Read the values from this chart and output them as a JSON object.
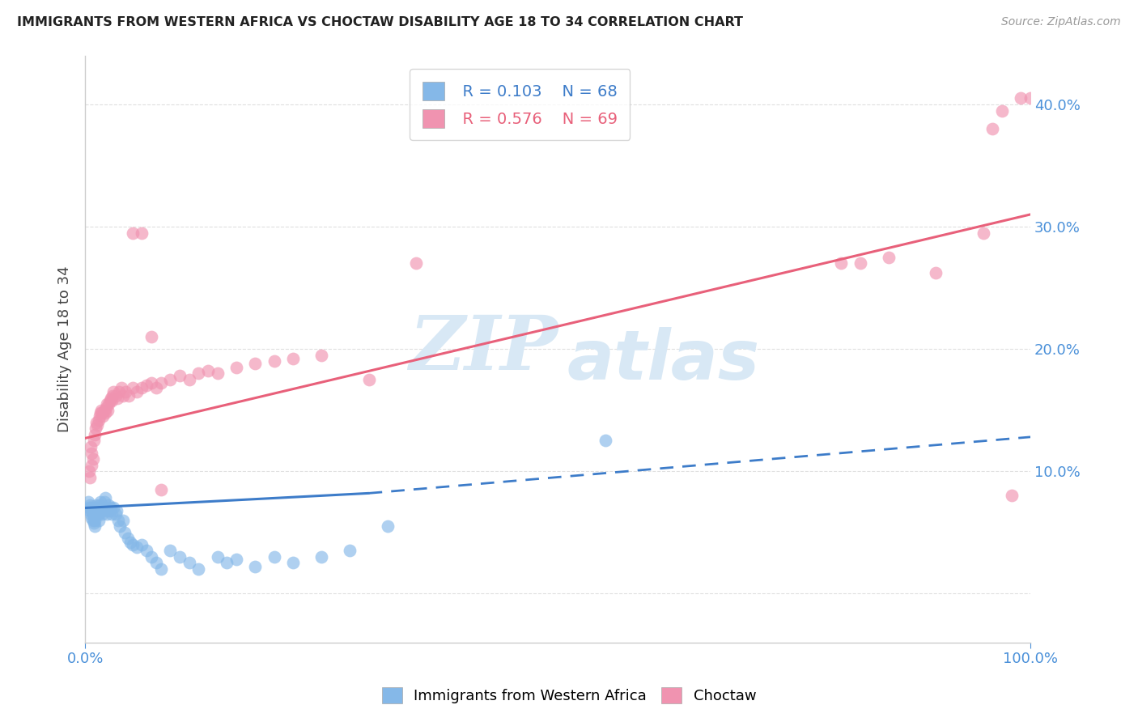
{
  "title": "IMMIGRANTS FROM WESTERN AFRICA VS CHOCTAW DISABILITY AGE 18 TO 34 CORRELATION CHART",
  "source": "Source: ZipAtlas.com",
  "ylabel": "Disability Age 18 to 34",
  "xlim": [
    0.0,
    1.0
  ],
  "ylim": [
    -0.04,
    0.44
  ],
  "yticks": [
    0.0,
    0.1,
    0.2,
    0.3,
    0.4
  ],
  "ytick_labels": [
    "",
    "10.0%",
    "20.0%",
    "30.0%",
    "40.0%"
  ],
  "legend_R1": "R = 0.103",
  "legend_N1": "N = 68",
  "legend_R2": "R = 0.576",
  "legend_N2": "N = 69",
  "color_blue": "#85b8e8",
  "color_pink": "#f093b0",
  "color_line_blue": "#3d7cc9",
  "color_line_pink": "#e8607a",
  "color_title": "#222222",
  "color_source": "#999999",
  "color_ylabel": "#444444",
  "color_ytick": "#4a90d9",
  "color_xtick": "#4a90d9",
  "watermark_zip": "ZIP",
  "watermark_atlas": "atlas",
  "watermark_color": "#d8e8f5",
  "background_color": "#ffffff",
  "grid_color": "#e0e0e0",
  "blue_x": [
    0.003,
    0.004,
    0.005,
    0.005,
    0.006,
    0.006,
    0.007,
    0.007,
    0.008,
    0.008,
    0.009,
    0.009,
    0.01,
    0.01,
    0.01,
    0.011,
    0.011,
    0.012,
    0.012,
    0.013,
    0.013,
    0.014,
    0.014,
    0.015,
    0.015,
    0.016,
    0.017,
    0.018,
    0.019,
    0.02,
    0.021,
    0.022,
    0.023,
    0.024,
    0.025,
    0.026,
    0.027,
    0.028,
    0.03,
    0.032,
    0.033,
    0.035,
    0.037,
    0.04,
    0.042,
    0.045,
    0.048,
    0.05,
    0.055,
    0.06,
    0.065,
    0.07,
    0.075,
    0.08,
    0.09,
    0.1,
    0.11,
    0.12,
    0.14,
    0.15,
    0.16,
    0.18,
    0.2,
    0.22,
    0.25,
    0.28,
    0.32,
    0.55
  ],
  "blue_y": [
    0.075,
    0.07,
    0.068,
    0.072,
    0.065,
    0.07,
    0.062,
    0.068,
    0.06,
    0.065,
    0.058,
    0.063,
    0.055,
    0.06,
    0.067,
    0.07,
    0.065,
    0.068,
    0.072,
    0.065,
    0.07,
    0.06,
    0.065,
    0.068,
    0.072,
    0.075,
    0.07,
    0.065,
    0.068,
    0.075,
    0.078,
    0.07,
    0.065,
    0.068,
    0.072,
    0.068,
    0.07,
    0.065,
    0.07,
    0.065,
    0.068,
    0.06,
    0.055,
    0.06,
    0.05,
    0.045,
    0.042,
    0.04,
    0.038,
    0.04,
    0.035,
    0.03,
    0.025,
    0.02,
    0.035,
    0.03,
    0.025,
    0.02,
    0.03,
    0.025,
    0.028,
    0.022,
    0.03,
    0.025,
    0.03,
    0.035,
    0.055,
    0.125
  ],
  "pink_x": [
    0.004,
    0.005,
    0.006,
    0.007,
    0.007,
    0.008,
    0.009,
    0.01,
    0.011,
    0.012,
    0.013,
    0.014,
    0.015,
    0.016,
    0.017,
    0.018,
    0.019,
    0.02,
    0.021,
    0.022,
    0.023,
    0.024,
    0.025,
    0.026,
    0.027,
    0.028,
    0.029,
    0.03,
    0.032,
    0.034,
    0.036,
    0.038,
    0.04,
    0.043,
    0.046,
    0.05,
    0.055,
    0.06,
    0.065,
    0.07,
    0.075,
    0.08,
    0.09,
    0.1,
    0.11,
    0.12,
    0.13,
    0.14,
    0.16,
    0.18,
    0.2,
    0.22,
    0.25,
    0.05,
    0.06,
    0.3,
    0.35,
    0.07,
    0.08,
    0.8,
    0.82,
    0.85,
    0.9,
    0.95,
    0.96,
    0.97,
    0.98,
    0.99,
    1.0
  ],
  "pink_y": [
    0.1,
    0.095,
    0.12,
    0.105,
    0.115,
    0.11,
    0.125,
    0.13,
    0.135,
    0.14,
    0.138,
    0.142,
    0.145,
    0.148,
    0.15,
    0.148,
    0.145,
    0.15,
    0.148,
    0.152,
    0.155,
    0.15,
    0.155,
    0.158,
    0.16,
    0.158,
    0.162,
    0.165,
    0.162,
    0.16,
    0.165,
    0.168,
    0.162,
    0.165,
    0.162,
    0.168,
    0.165,
    0.168,
    0.17,
    0.172,
    0.168,
    0.172,
    0.175,
    0.178,
    0.175,
    0.18,
    0.182,
    0.18,
    0.185,
    0.188,
    0.19,
    0.192,
    0.195,
    0.295,
    0.295,
    0.175,
    0.27,
    0.21,
    0.085,
    0.27,
    0.27,
    0.275,
    0.262,
    0.295,
    0.38,
    0.395,
    0.08,
    0.405,
    0.405
  ],
  "blue_line_x0": 0.0,
  "blue_line_x_solid_end": 0.3,
  "blue_line_x1": 1.0,
  "blue_line_y0": 0.07,
  "blue_line_y_solid_end": 0.082,
  "blue_line_y1": 0.128,
  "pink_line_x0": 0.0,
  "pink_line_x1": 1.0,
  "pink_line_y0": 0.127,
  "pink_line_y1": 0.31
}
